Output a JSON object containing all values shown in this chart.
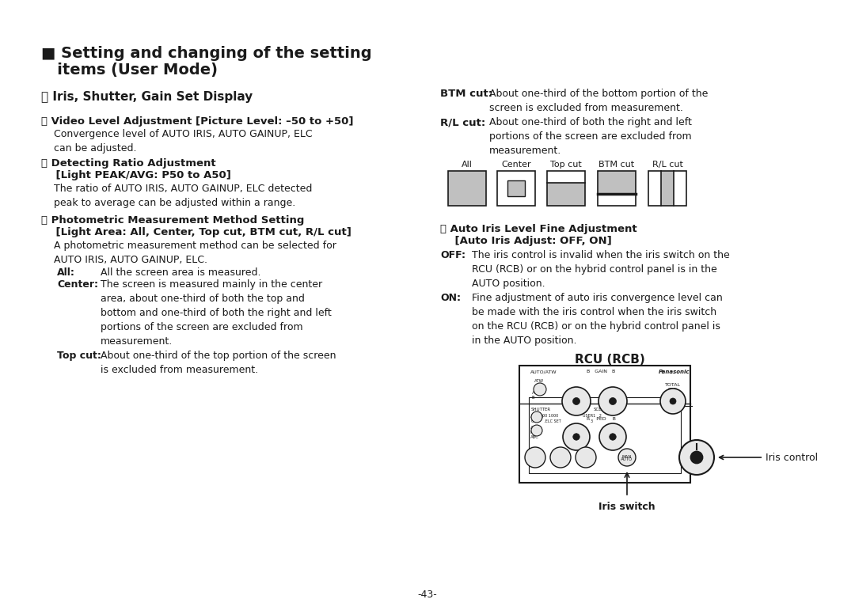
{
  "bg_color": "#ffffff",
  "text_color": "#1a1a1a",
  "title_line1": "■ Setting and changing of the setting",
  "title_line2": "   items (User Mode)",
  "section6_header": "ⓖ Iris, Shutter, Gain Set Display",
  "item32_header": "ⓡ Video Level Adjustment [Picture Level: –50 to +50]",
  "item32_body": "Convergence level of AUTO IRIS, AUTO GAINUP, ELC\ncan be adjusted.",
  "item33_header_1": "ⓢ Detecting Ratio Adjustment",
  "item33_header_2": "    [Light PEAK/AVG: P50 to A50]",
  "item33_body": "The ratio of AUTO IRIS, AUTO GAINUP, ELC detected\npeak to average can be adjusted within a range.",
  "item34_header_1": "ⓣ Photometric Measurement Method Setting",
  "item34_header_2": "    [Light Area: All, Center, Top cut, BTM cut, R/L cut]",
  "item34_body": "A photometric measurement method can be selected for\nAUTO IRIS, AUTO GAINUP, ELC.",
  "all_label": "All:",
  "all_text": "All the screen area is measured.",
  "center_label": "Center:",
  "center_text": "The screen is measured mainly in the center\narea, about one-third of both the top and\nbottom and one-third of both the right and left\nportions of the screen are excluded from\nmeasurement.",
  "topcut_label": "Top cut:",
  "topcut_text": "About one-third of the top portion of the screen\nis excluded from measurement.",
  "right_col_btmcut_header": "BTM cut:",
  "right_col_btmcut_text": "About one-third of the bottom portion of the\nscreen is excluded from measurement.",
  "right_col_rlcut_header": "R/L cut:",
  "right_col_rlcut_text": "About one-third of both the right and left\nportions of the screen are excluded from\nmeasurement.",
  "diagram_labels": [
    "All",
    "Center",
    "Top cut",
    "BTM cut",
    "R/L cut"
  ],
  "item35_header_1": "ⓤ Auto Iris Level Fine Adjustment",
  "item35_header_2": "    [Auto Iris Adjust: OFF, ON]",
  "off_label": "OFF:",
  "off_text": "The iris control is invalid when the iris switch on the\nRCU (RCB) or on the hybrid control panel is in the\nAUTO position.",
  "on_label": "ON:",
  "on_text": "Fine adjustment of auto iris convergence level can\nbe made with the iris control when the iris switch\non the RCU (RCB) or on the hybrid control panel is\nin the AUTO position.",
  "rcu_label": "RCU (RCB)",
  "iris_control_label": "Iris control",
  "iris_switch_label": "Iris switch",
  "page_number": "-43-"
}
